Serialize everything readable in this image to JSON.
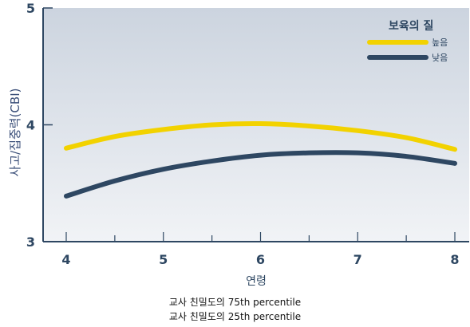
{
  "chart_data": {
    "type": "line",
    "title": "",
    "xlabel": "연령",
    "ylabel": "사고/집중력(CBI)",
    "xlim": [
      4,
      8
    ],
    "ylim": [
      3,
      5
    ],
    "x_ticks": [
      "4",
      "5",
      "6",
      "7",
      "8"
    ],
    "y_ticks": [
      "3",
      "4",
      "5"
    ],
    "grid": false,
    "legend": {
      "title": "보육의 질",
      "placement": "top-right"
    },
    "series": [
      {
        "name": "높음",
        "color": "#f2d200",
        "x": [
          4,
          4.5,
          5,
          5.5,
          6,
          6.5,
          7,
          7.5,
          8
        ],
        "y": [
          3.8,
          3.9,
          3.96,
          4.0,
          4.01,
          3.99,
          3.95,
          3.89,
          3.79
        ]
      },
      {
        "name": "낮음",
        "color": "#2e4762",
        "x": [
          4,
          4.5,
          5,
          5.5,
          6,
          6.5,
          7,
          7.5,
          8
        ],
        "y": [
          3.39,
          3.52,
          3.62,
          3.69,
          3.74,
          3.76,
          3.76,
          3.73,
          3.67
        ]
      }
    ]
  },
  "footnotes": [
    "교사 친밀도의 75th percentile",
    "교사 친밀도의 25th percentile"
  ]
}
